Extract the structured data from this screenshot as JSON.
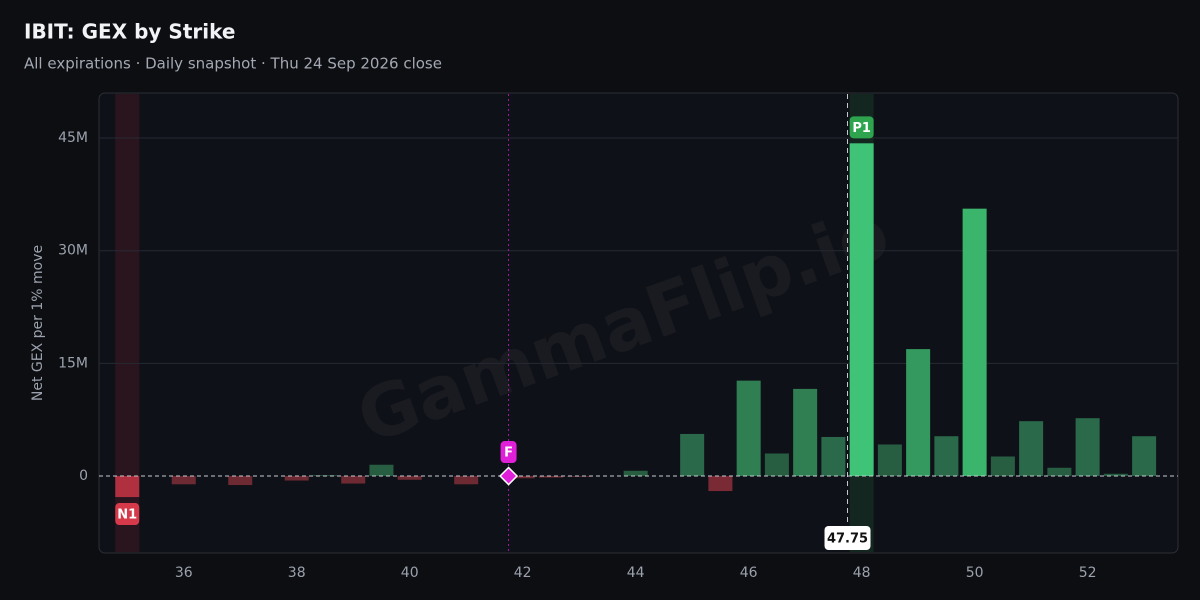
{
  "chart_data": {
    "type": "bar",
    "title": "IBIT: GEX by Strike",
    "subtitle": "All expirations · Daily snapshot · Thu 24 Sep 2026 close",
    "y_label": "Net GEX per 1% move",
    "watermark": "GammaFlip.io",
    "x": [
      35,
      35.5,
      36,
      36.5,
      37,
      37.5,
      38,
      38.5,
      39,
      39.5,
      40,
      40.5,
      41,
      41.5,
      42,
      42.5,
      43,
      43.5,
      44,
      44.5,
      45,
      45.5,
      46,
      46.5,
      47,
      47.5,
      48,
      48.5,
      49,
      49.5,
      50,
      50.5,
      51,
      51.5,
      52,
      52.5,
      53
    ],
    "series": [
      {
        "values": [
          -2800000,
          0,
          -1100000,
          0,
          -1200000,
          0,
          -600000,
          100000,
          -1000000,
          1500000,
          -500000,
          0,
          -1100000,
          0,
          -300000,
          -200000,
          -100000,
          0,
          700000,
          0,
          5600000,
          -2000000,
          12700000,
          3000000,
          11600000,
          5200000,
          44300000,
          4200000,
          16900000,
          5300000,
          35600000,
          2600000,
          7300000,
          1100000,
          7700000,
          300000,
          5300000
        ],
        "colors": [
          "#b0303f",
          "#6e2a33",
          "#6e2a33",
          "#6e2a33",
          "#6e2a33",
          "#6e2a33",
          "#6e2a33",
          "#275e42",
          "#6e2a33",
          "#275e42",
          "#6e2a33",
          "#6e2a33",
          "#6e2a33",
          "#6e2a33",
          "#6e2a33",
          "#6e2a33",
          "#6e2a33",
          "#275e42",
          "#275e42",
          "#275e42",
          "#2a6a4a",
          "#7a2a34",
          "#2f7f53",
          "#275e42",
          "#2f7f53",
          "#2a6a4a",
          "#3fc477",
          "#275e42",
          "#33995e",
          "#2a6a4a",
          "#3ab56b",
          "#275e42",
          "#2a6a4a",
          "#275e42",
          "#2a6a4a",
          "#275e42",
          "#2a6a4a"
        ]
      }
    ],
    "xlim": [
      34.5,
      53.6
    ],
    "xticks": [
      36,
      38,
      40,
      42,
      44,
      46,
      48,
      50,
      52
    ],
    "ylim": [
      -10250000,
      51000000
    ],
    "yticks": [
      0,
      {
        "value": 15000000,
        "label": "15M"
      },
      {
        "value": 30000000,
        "label": "30M"
      },
      {
        "value": 45000000,
        "label": "45M"
      }
    ],
    "grid": true,
    "markers": [
      {
        "label": "N1",
        "x": 35,
        "color": "#d63a4a",
        "band": "rgba(200,50,70,0.15)"
      },
      {
        "label": "P1",
        "x": 48,
        "color": "#2ea44f",
        "band": "rgba(40,140,70,0.18)"
      },
      {
        "label": "F",
        "x": 41.75,
        "color": "#e020d8"
      }
    ],
    "price": 47.75
  }
}
